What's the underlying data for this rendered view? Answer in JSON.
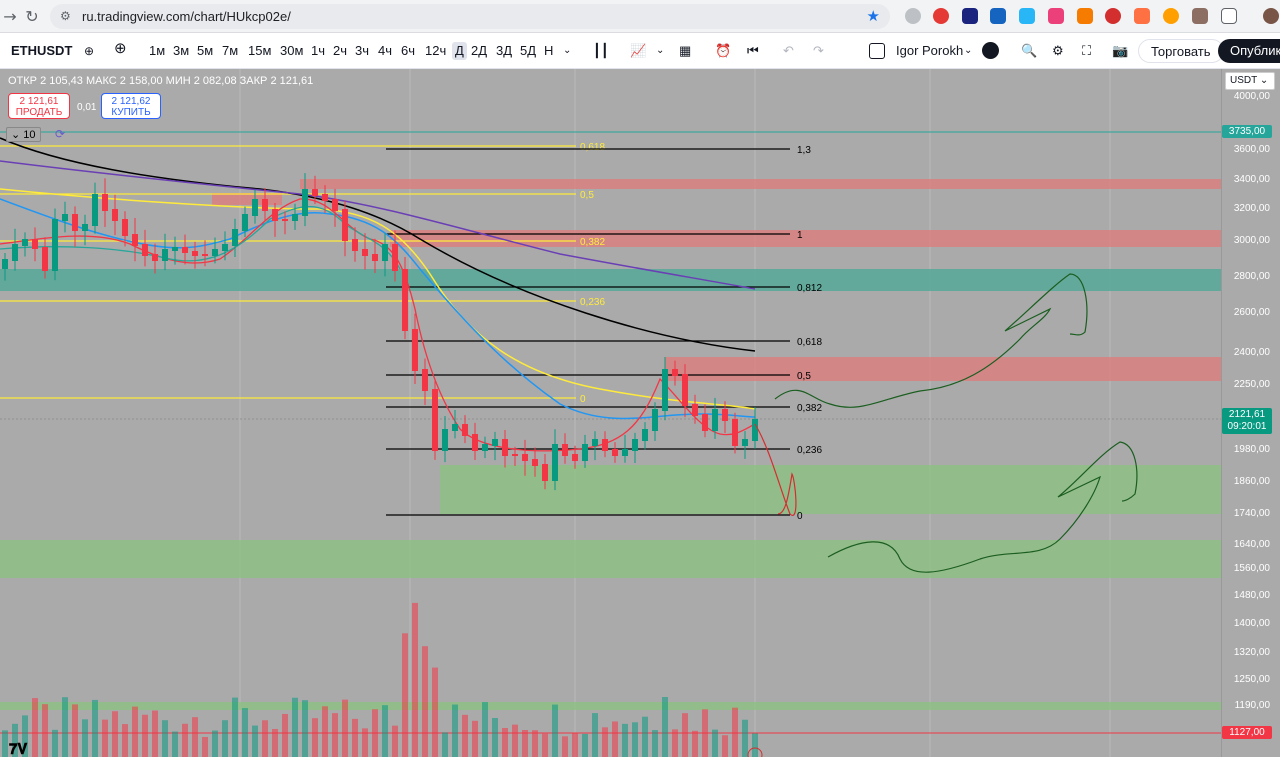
{
  "browser": {
    "url": "ru.tradingview.com/chart/HUkcp02e/"
  },
  "toolbar": {
    "symbol": "ETHUSDT",
    "intervals": [
      "1м",
      "3м",
      "5м",
      "7м",
      "15м",
      "30м",
      "1ч",
      "2ч",
      "3ч",
      "4ч",
      "6ч",
      "12ч",
      "Д",
      "2Д",
      "3Д",
      "5Д",
      "Н"
    ],
    "active_interval": "Д",
    "user": "Igor Porokh",
    "trade_label": "Торговать",
    "publish_label": "Опублико"
  },
  "info": {
    "open_label": "ОТКР",
    "open_value": "2 105,43",
    "high_label": "МАКС",
    "high_value": "2 158,00",
    "low_label": "МИН",
    "low_value": "2 082,08",
    "close_label": "ЗАКР",
    "close_value": "2 121,61",
    "sell_price": "2 121,61",
    "sell_label": "ПРОДАТЬ",
    "spread": "0,01",
    "buy_price": "2 121,62",
    "buy_label": "КУПИТЬ",
    "indicator_count": "10"
  },
  "price_axis": {
    "currency": "USDT",
    "ticks": [
      "4000,00",
      "3600,00",
      "3400,00",
      "3200,00",
      "3000,00",
      "2800,00",
      "2600,00",
      "2400,00",
      "2250,00",
      "1980,00",
      "1860,00",
      "1740,00",
      "1640,00",
      "1560,00",
      "1480,00",
      "1400,00",
      "1320,00",
      "1250,00",
      "1190,00"
    ],
    "tag_top": "3735,00",
    "tag_current": "2121,61",
    "tag_countdown": "09:20:01",
    "tag_bottom": "1127,00"
  },
  "fib_right": [
    "1,3",
    "1",
    "0,812",
    "0,618",
    "0,5",
    "0,382",
    "0,236",
    "0"
  ],
  "fib_left": [
    "0,618",
    "0,5",
    "0,382",
    "0,236",
    "0"
  ],
  "colors": {
    "chart_bg": "#aaaaaa",
    "up_candle": "#089981",
    "down_candle": "#f23645",
    "fib_left": "#ffeb3b",
    "zone_red": "#e57373",
    "zone_green": "#66bb6a",
    "zone_teal": "#26a69a"
  }
}
